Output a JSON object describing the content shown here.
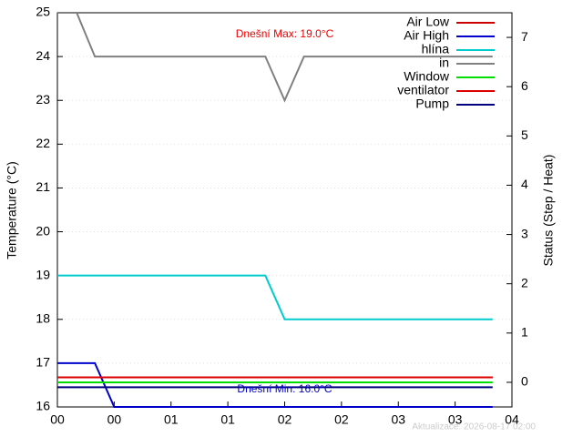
{
  "chart_data": {
    "type": "line",
    "ylabel": "Temperature (°C)",
    "y2label": "Status (Step / Heat)",
    "x": [
      0,
      0.17,
      0.33,
      0.5,
      1.83,
      2.0,
      2.17,
      3.83
    ],
    "xlim": [
      0,
      4
    ],
    "xticks": [
      {
        "value": 0,
        "label": "00"
      },
      {
        "value": 0.5,
        "label": "00"
      },
      {
        "value": 1,
        "label": "01"
      },
      {
        "value": 1.5,
        "label": "01"
      },
      {
        "value": 2,
        "label": "02"
      },
      {
        "value": 2.5,
        "label": "02"
      },
      {
        "value": 3,
        "label": "03"
      },
      {
        "value": 3.5,
        "label": "03"
      },
      {
        "value": 4,
        "label": "04"
      }
    ],
    "ylim": [
      16,
      25
    ],
    "yticks": [
      16,
      17,
      18,
      19,
      20,
      21,
      22,
      23,
      24,
      25
    ],
    "y2lim": [
      -0.5,
      7.5
    ],
    "y2ticks": [
      0,
      1,
      2,
      3,
      4,
      5,
      6,
      7
    ],
    "grid": true,
    "legend": "top-right",
    "series": [
      {
        "name": "Air Low",
        "color": "#cc0000",
        "axis": "y2",
        "values": [
          0.1,
          0.1,
          0.1,
          0.1,
          0.1,
          0.1,
          0.1,
          0.1
        ]
      },
      {
        "name": "Air High",
        "color": "#0000cc",
        "values": [
          17,
          17,
          17,
          16,
          16,
          16,
          16,
          16
        ]
      },
      {
        "name": "hlína",
        "color": "#00cccc",
        "values": [
          19,
          19,
          19,
          19,
          19,
          18,
          18,
          18
        ]
      },
      {
        "name": "in",
        "color": "#808080",
        "values": [
          25,
          25,
          24,
          24,
          24,
          23,
          24,
          24
        ]
      },
      {
        "name": "Window",
        "color": "#00dd00",
        "axis": "y2",
        "values": [
          0,
          0,
          0,
          0,
          0,
          0,
          0,
          0
        ]
      },
      {
        "name": "ventilator",
        "color": "#dd0000",
        "axis": "y2",
        "values": [
          0.1,
          0.1,
          0.1,
          0.1,
          0.1,
          0.1,
          0.1,
          0.1
        ]
      },
      {
        "name": "Pump",
        "color": "#000080",
        "axis": "y2",
        "values": [
          -0.1,
          -0.1,
          -0.1,
          -0.1,
          -0.1,
          -0.1,
          -0.1,
          -0.1
        ]
      }
    ],
    "annotations": [
      {
        "text": "Dnešní Max: 19.0°C",
        "color": "#ee0000",
        "x": 2,
        "y": 24.5
      },
      {
        "text": "Dnešní Min: 16.0°C",
        "color": "#0000cc",
        "x": 2,
        "y": 16.4
      }
    ],
    "footnote": "Aktualizace: 2026-08-17 02:00"
  }
}
